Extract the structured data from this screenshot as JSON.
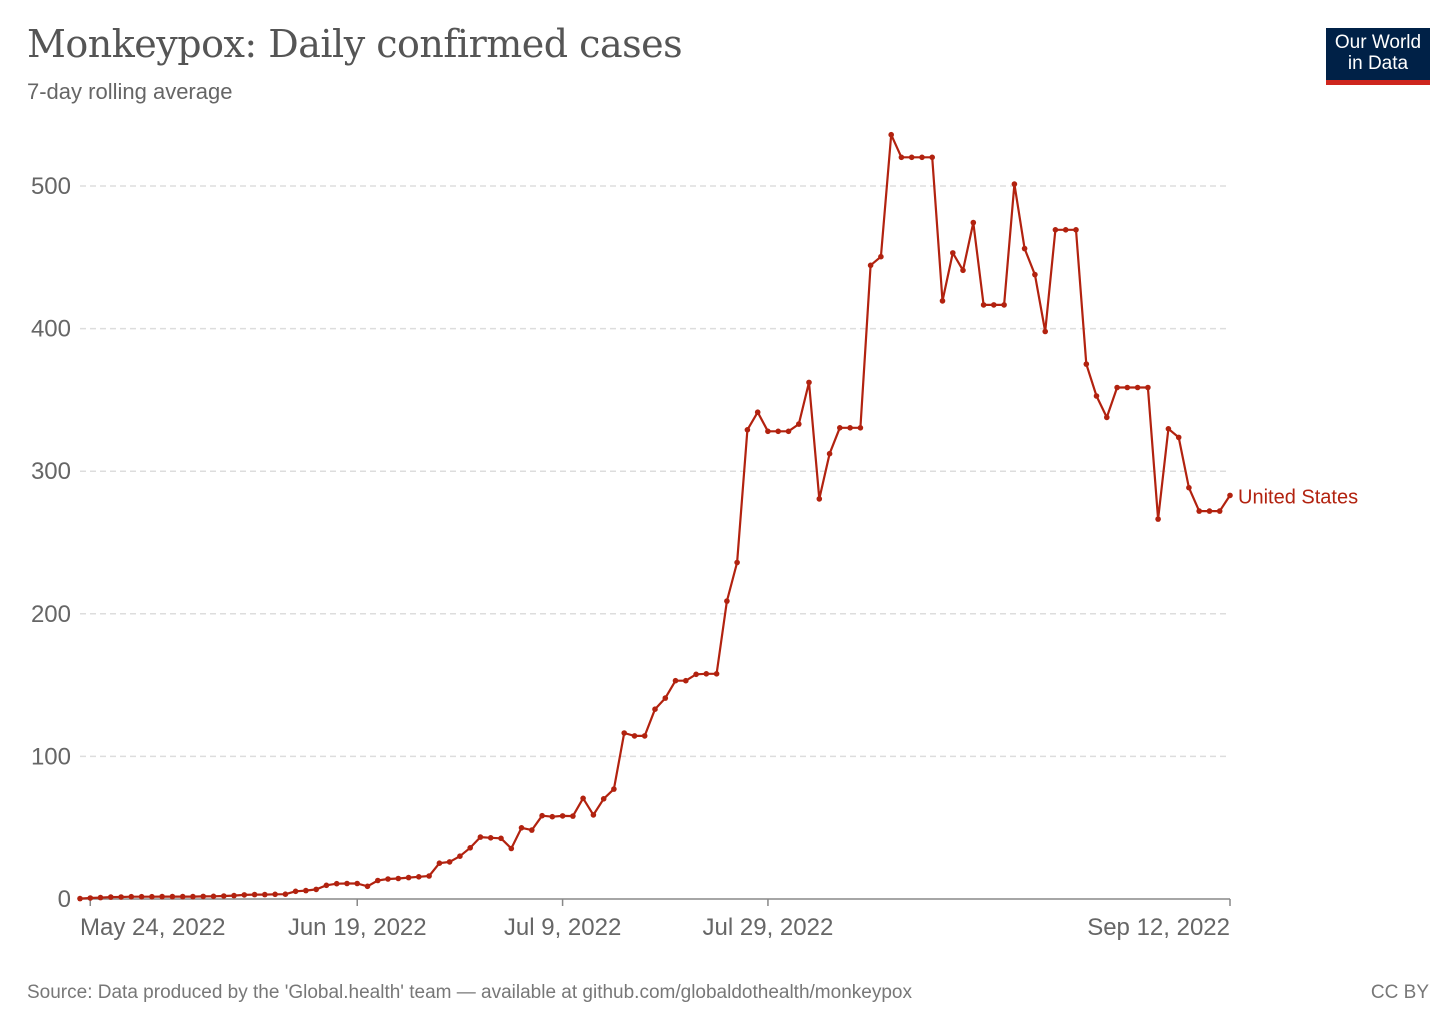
{
  "header": {
    "title": "Monkeypox: Daily confirmed cases",
    "subtitle": "7-day rolling average"
  },
  "logo": {
    "line1": "Our World",
    "line2": "in Data",
    "bg_color": "#002147",
    "accent_color": "#ce261e"
  },
  "footer": {
    "source": "Source: Data produced by the 'Global.health' team — available at github.com/globaldothealth/monkeypox",
    "license": "CC BY"
  },
  "chart_data": {
    "type": "line",
    "title": "Monkeypox: Daily confirmed cases",
    "subtitle": "7-day rolling average",
    "x_start": "May 23, 2022",
    "x_end": "Sep 12, 2022",
    "ylim": [
      0,
      500
    ],
    "yticks": [
      0,
      100,
      200,
      300,
      400,
      500
    ],
    "ytick_labels": [
      "0",
      "100",
      "200",
      "300",
      "400",
      "500"
    ],
    "xticks": [
      "May 24, 2022",
      "Jun 19, 2022",
      "Jul 9, 2022",
      "Jul 29, 2022",
      "Sep 12, 2022"
    ],
    "grid": true,
    "series": [
      {
        "name": "United States",
        "color": "#b2220f",
        "values": [
          0.3,
          0.7,
          1,
          1.3,
          1.4,
          1.6,
          1.6,
          1.6,
          1.7,
          1.7,
          1.7,
          1.7,
          1.8,
          1.9,
          2.1,
          2.4,
          2.9,
          3.1,
          3.1,
          3.3,
          3.4,
          5.4,
          5.9,
          6.7,
          9.6,
          10.7,
          10.9,
          10.9,
          8.9,
          13,
          14,
          14.4,
          15,
          15.6,
          16.1,
          25.1,
          26,
          30,
          35.9,
          43.4,
          42.9,
          42.6,
          35.4,
          49.9,
          48.3,
          58.4,
          57.7,
          58.3,
          58.1,
          70.6,
          59,
          70.3,
          77.1,
          116.4,
          114.4,
          114.4,
          133.1,
          140.9,
          153.1,
          153.1,
          157.6,
          157.9,
          157.9,
          208.9,
          236,
          329,
          341.4,
          328,
          328,
          328,
          333,
          362.3,
          280.6,
          312.3,
          330.4,
          330.4,
          330.4,
          444.4,
          450.4,
          536,
          520.1,
          520.1,
          520.1,
          520.1,
          419.4,
          453.1,
          440.9,
          474.3,
          416.6,
          416.6,
          416.6,
          501.3,
          456.1,
          437.9,
          398,
          469.3,
          469.3,
          469.3,
          375.1,
          352.7,
          337.7,
          358.7,
          358.7,
          358.7,
          358.7,
          266.4,
          329.7,
          323.7,
          288.4,
          272,
          272,
          272,
          283
        ]
      }
    ]
  }
}
